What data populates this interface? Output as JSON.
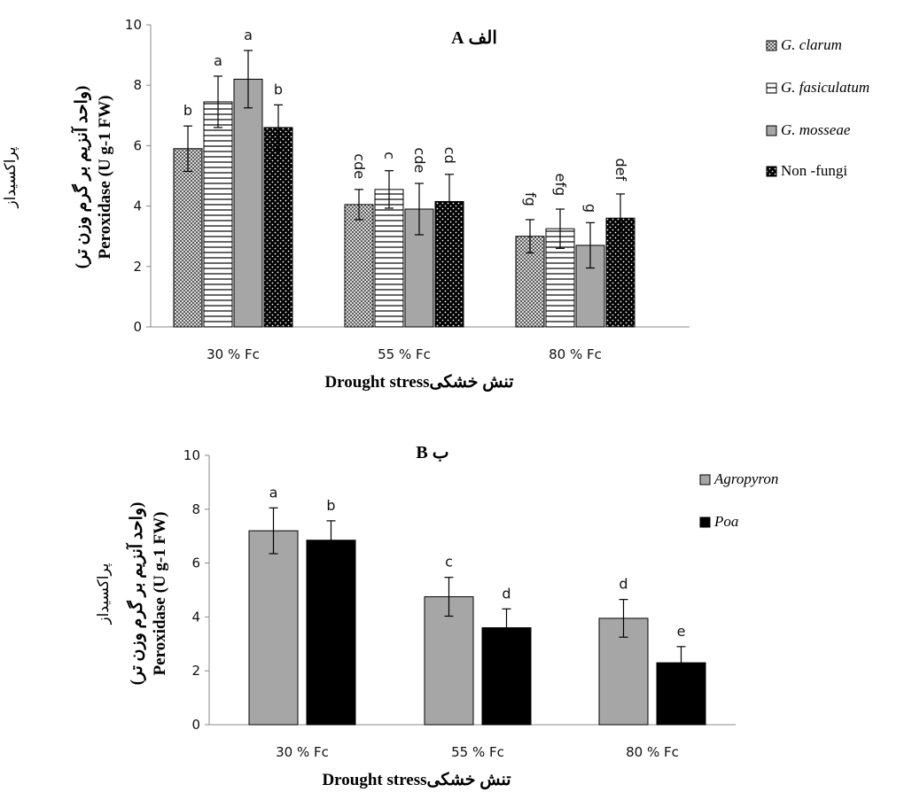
{
  "chart_data": [
    {
      "type": "bar",
      "title": "الف A",
      "xlabel": "Drought stressتنش خشکی",
      "ylabel_fa": "پراکسیداز",
      "ylabel_fa2": "(واحد آنزیم بر گرم وزن تر)",
      "ylabel_en": "Peroxidase (U g-1 FW)",
      "ylim": [
        0,
        10
      ],
      "yticks": [
        0,
        2,
        4,
        6,
        8,
        10
      ],
      "categories": [
        "30 % Fc",
        "55 % Fc",
        "80 % Fc"
      ],
      "series": [
        {
          "name": "G. clarum",
          "pattern": "crosshatch",
          "values": [
            5.9,
            4.05,
            3.0
          ],
          "errors": [
            0.75,
            0.5,
            0.55
          ],
          "letters": [
            "b",
            "cde",
            "fg"
          ]
        },
        {
          "name": "G. fasiculatum",
          "pattern": "hlines",
          "values": [
            7.45,
            4.55,
            3.25
          ],
          "errors": [
            0.85,
            0.62,
            0.65
          ],
          "letters": [
            "a",
            "c",
            "efg"
          ]
        },
        {
          "name": "G. mosseae",
          "pattern": "gray",
          "values": [
            8.2,
            3.9,
            2.7
          ],
          "errors": [
            0.95,
            0.85,
            0.75
          ],
          "letters": [
            "a",
            "cde",
            "g"
          ]
        },
        {
          "name": "Non -fungi",
          "pattern": "dots",
          "values": [
            6.6,
            4.15,
            3.6
          ],
          "errors": [
            0.75,
            0.9,
            0.8
          ],
          "letters": [
            "b",
            "cd",
            "def"
          ]
        }
      ],
      "grid": false,
      "legend_position": "right"
    },
    {
      "type": "bar",
      "title": "ب B",
      "xlabel": "Drought stressتنش خشکی",
      "ylabel_fa": "پراکسیداز",
      "ylabel_fa2": "(واحد آنزیم بر گرم وزن تر)",
      "ylabel_en": "Peroxidase (U g-1 FW)",
      "ylim": [
        0,
        10
      ],
      "yticks": [
        0,
        2,
        4,
        6,
        8,
        10
      ],
      "categories": [
        "30 % Fc",
        "55 % Fc",
        "80 % Fc"
      ],
      "series": [
        {
          "name": "Agropyron",
          "pattern": "gray",
          "values": [
            7.2,
            4.75,
            3.95
          ],
          "errors": [
            0.85,
            0.72,
            0.7
          ],
          "letters": [
            "a",
            "c",
            "d"
          ]
        },
        {
          "name": "Poa",
          "pattern": "black",
          "values": [
            6.85,
            3.6,
            2.3
          ],
          "errors": [
            0.72,
            0.7,
            0.6
          ],
          "letters": [
            "b",
            "d",
            "e"
          ]
        }
      ],
      "grid": false,
      "legend_position": "right"
    }
  ]
}
